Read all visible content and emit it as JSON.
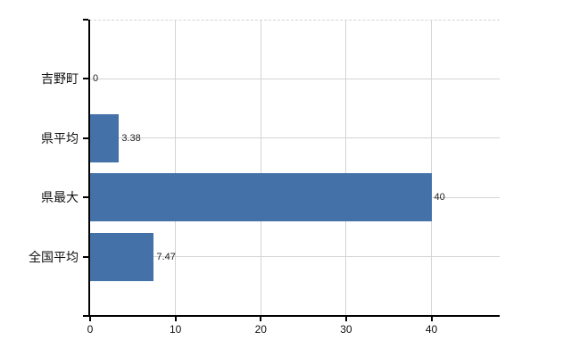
{
  "chart_data": {
    "type": "bar",
    "orientation": "horizontal",
    "title": "",
    "xlabel": "",
    "ylabel": "",
    "categories": [
      "吉野町",
      "県平均",
      "県最大",
      "全国平均"
    ],
    "values": [
      0,
      3.38,
      40,
      7.47
    ],
    "value_labels": [
      "0",
      "3.38",
      "40",
      "7.47"
    ],
    "x_ticks": [
      0,
      10,
      20,
      30,
      40
    ],
    "x_tick_labels": [
      "0",
      "10",
      "20",
      "30",
      "40"
    ],
    "xlim": [
      0,
      48
    ],
    "grid": true,
    "legend": "none",
    "colors": {
      "bar": "#4472a8",
      "gridline": "#d4d4d4",
      "axis": "#000000",
      "category_label": "#111111",
      "value_label": "#222222",
      "tick_label": "#111111",
      "background": "#ffffff"
    }
  }
}
